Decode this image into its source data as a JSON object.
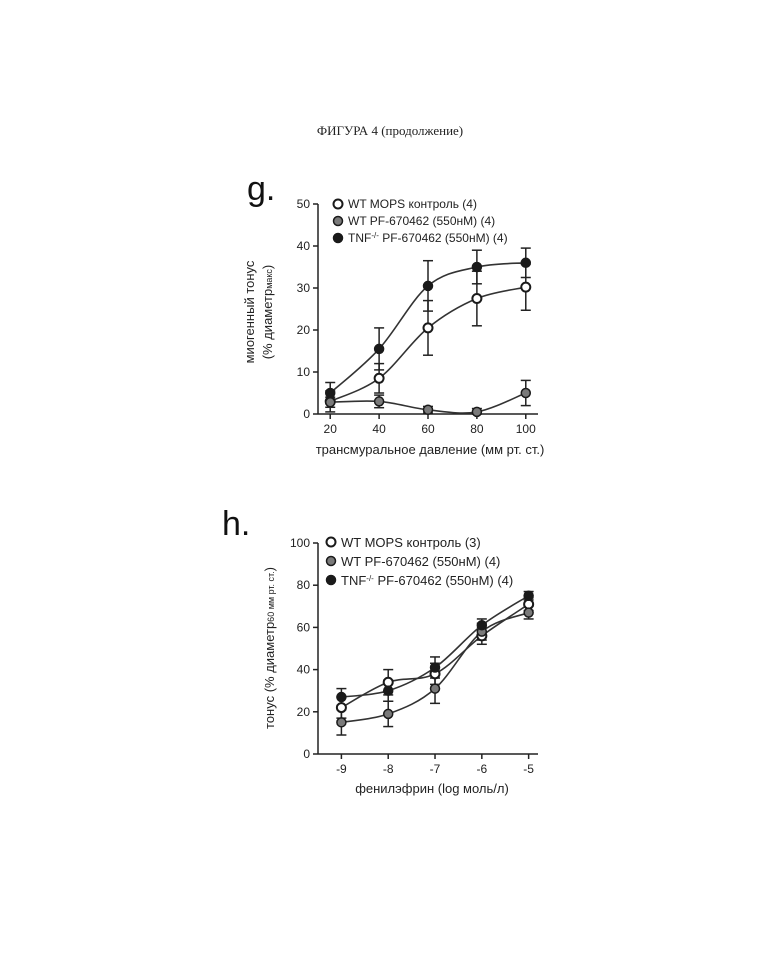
{
  "page_title": "ФИГУРА 4 (продолжение)",
  "chart_data": [
    {
      "panel": "g.",
      "type": "scatter",
      "xlabel": "трансмуральное давление (мм рт. ст.)",
      "ylabel_line1": "миогенный тонус",
      "ylabel_line2": "(% диаметр",
      "ylabel_sub": "макс",
      "ylabel_close": ")",
      "x_ticks": [
        "20",
        "40",
        "60",
        "80",
        "100"
      ],
      "y_ticks": [
        "0",
        "10",
        "20",
        "30",
        "40",
        "50"
      ],
      "xlim": [
        15,
        105
      ],
      "ylim": [
        0,
        50
      ],
      "legend": [
        {
          "label": "WT MOPS контроль (4)"
        },
        {
          "label": "WT PF-670462 (550нМ) (4)"
        },
        {
          "label_pre": "TNF",
          "label_sup": "-/-",
          "label_post": " PF-670462 (550нМ) (4)"
        }
      ],
      "series": [
        {
          "marker": "open",
          "color": "#ffffff",
          "x": [
            20,
            40,
            60,
            80,
            100
          ],
          "y": [
            3,
            8.5,
            20.5,
            27.5,
            30.2
          ],
          "err": [
            2.5,
            3.5,
            6.5,
            6.5,
            5.5
          ]
        },
        {
          "marker": "gray",
          "color": "#7a7a7a",
          "x": [
            20,
            40,
            60,
            80,
            100
          ],
          "y": [
            2.8,
            3,
            1,
            0.5,
            5
          ],
          "err": [
            1.2,
            1.5,
            0.8,
            0.8,
            3
          ]
        },
        {
          "marker": "filled",
          "color": "#1a1a1a",
          "x": [
            20,
            40,
            60,
            80,
            100
          ],
          "y": [
            5,
            15.5,
            30.5,
            35,
            36
          ],
          "err": [
            2.5,
            5,
            6,
            4,
            3.5
          ]
        }
      ]
    },
    {
      "panel": "h.",
      "type": "scatter",
      "xlabel": "фенилэфрин (log моль/л)",
      "ylabel_pre": "тонус (% диаметр",
      "ylabel_sub": "60 мм рт. ст.",
      "ylabel_close": ")",
      "x_ticks": [
        "-9",
        "-8",
        "-7",
        "-6",
        "-5"
      ],
      "y_ticks": [
        "0",
        "20",
        "40",
        "60",
        "80",
        "100"
      ],
      "xlim": [
        -9.5,
        -4.8
      ],
      "ylim": [
        0,
        100
      ],
      "legend": [
        {
          "label": "WT MOPS контроль (3)"
        },
        {
          "label": "WT PF-670462 (550нМ) (4)"
        },
        {
          "label_pre": "TNF",
          "label_sup": "-/-",
          "label_post": " PF-670462 (550нМ) (4)"
        }
      ],
      "series": [
        {
          "marker": "open",
          "color": "#ffffff",
          "x": [
            -9,
            -8,
            -7,
            -6,
            -5
          ],
          "y": [
            22,
            34,
            38,
            56,
            71
          ],
          "err": [
            5,
            6,
            5,
            4,
            3
          ]
        },
        {
          "marker": "gray",
          "color": "#7a7a7a",
          "x": [
            -9,
            -8,
            -7,
            -6,
            -5
          ],
          "y": [
            15,
            19,
            31,
            58,
            67
          ],
          "err": [
            6,
            6,
            7,
            4,
            3
          ]
        },
        {
          "marker": "filled",
          "color": "#1a1a1a",
          "x": [
            -9,
            -8,
            -7,
            -6,
            -5
          ],
          "y": [
            27,
            30,
            41,
            61,
            75
          ],
          "err": [
            4,
            5,
            5,
            3,
            2
          ]
        }
      ]
    }
  ]
}
